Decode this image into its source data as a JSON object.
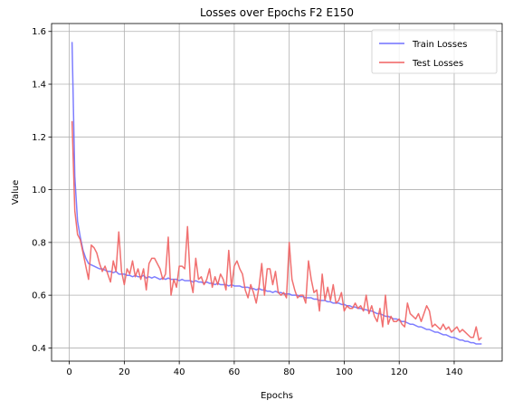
{
  "chart_data": {
    "type": "line",
    "title": "Losses over Epochs F2 E150",
    "xlabel": "Epochs",
    "ylabel": "Value",
    "xlim": [
      -6.45,
      157.45
    ],
    "ylim": [
      0.35,
      1.63
    ],
    "xticks": [
      0,
      20,
      40,
      60,
      80,
      100,
      120,
      140
    ],
    "yticks": [
      0.4,
      0.6,
      0.8,
      1.0,
      1.2,
      1.4,
      1.6
    ],
    "ytick_labels": [
      "0.4",
      "0.6",
      "0.8",
      "1.0",
      "1.2",
      "1.4",
      "1.6"
    ],
    "grid": true,
    "legend_position": "top-right",
    "colors": {
      "train": "#7070ff",
      "test": "#f06060"
    },
    "x": [
      1,
      2,
      3,
      4,
      5,
      6,
      7,
      8,
      9,
      10,
      11,
      12,
      13,
      14,
      15,
      16,
      17,
      18,
      19,
      20,
      21,
      22,
      23,
      24,
      25,
      26,
      27,
      28,
      29,
      30,
      31,
      32,
      33,
      34,
      35,
      36,
      37,
      38,
      39,
      40,
      41,
      42,
      43,
      44,
      45,
      46,
      47,
      48,
      49,
      50,
      51,
      52,
      53,
      54,
      55,
      56,
      57,
      58,
      59,
      60,
      61,
      62,
      63,
      64,
      65,
      66,
      67,
      68,
      69,
      70,
      71,
      72,
      73,
      74,
      75,
      76,
      77,
      78,
      79,
      80,
      81,
      82,
      83,
      84,
      85,
      86,
      87,
      88,
      89,
      90,
      91,
      92,
      93,
      94,
      95,
      96,
      97,
      98,
      99,
      100,
      101,
      102,
      103,
      104,
      105,
      106,
      107,
      108,
      109,
      110,
      111,
      112,
      113,
      114,
      115,
      116,
      117,
      118,
      119,
      120,
      121,
      122,
      123,
      124,
      125,
      126,
      127,
      128,
      129,
      130,
      131,
      132,
      133,
      134,
      135,
      136,
      137,
      138,
      139,
      140,
      141,
      142,
      143,
      144,
      145,
      146,
      147,
      148,
      149,
      150
    ],
    "series": [
      {
        "name": "Train Losses",
        "values": [
          1.56,
          1.05,
          0.88,
          0.82,
          0.77,
          0.74,
          0.72,
          0.715,
          0.71,
          0.705,
          0.7,
          0.7,
          0.695,
          0.69,
          0.69,
          0.685,
          0.69,
          0.68,
          0.68,
          0.68,
          0.675,
          0.675,
          0.67,
          0.675,
          0.67,
          0.67,
          0.675,
          0.665,
          0.67,
          0.665,
          0.67,
          0.665,
          0.66,
          0.665,
          0.66,
          0.665,
          0.66,
          0.66,
          0.66,
          0.655,
          0.66,
          0.655,
          0.655,
          0.655,
          0.65,
          0.655,
          0.65,
          0.65,
          0.645,
          0.65,
          0.645,
          0.645,
          0.64,
          0.645,
          0.64,
          0.64,
          0.64,
          0.635,
          0.64,
          0.635,
          0.635,
          0.635,
          0.63,
          0.63,
          0.63,
          0.625,
          0.625,
          0.62,
          0.625,
          0.62,
          0.62,
          0.615,
          0.615,
          0.61,
          0.615,
          0.61,
          0.61,
          0.605,
          0.605,
          0.605,
          0.6,
          0.6,
          0.6,
          0.595,
          0.595,
          0.59,
          0.59,
          0.59,
          0.585,
          0.585,
          0.58,
          0.58,
          0.58,
          0.575,
          0.575,
          0.57,
          0.57,
          0.57,
          0.565,
          0.565,
          0.56,
          0.56,
          0.555,
          0.555,
          0.55,
          0.55,
          0.545,
          0.545,
          0.54,
          0.54,
          0.535,
          0.53,
          0.53,
          0.525,
          0.52,
          0.52,
          0.515,
          0.51,
          0.51,
          0.505,
          0.5,
          0.5,
          0.495,
          0.49,
          0.49,
          0.485,
          0.48,
          0.48,
          0.475,
          0.47,
          0.47,
          0.465,
          0.46,
          0.46,
          0.455,
          0.45,
          0.45,
          0.445,
          0.44,
          0.44,
          0.435,
          0.43,
          0.43,
          0.425,
          0.425,
          0.42,
          0.42,
          0.415,
          0.415,
          0.415
        ]
      },
      {
        "name": "Test Losses",
        "values": [
          1.26,
          0.92,
          0.83,
          0.81,
          0.76,
          0.71,
          0.66,
          0.79,
          0.78,
          0.76,
          0.72,
          0.69,
          0.71,
          0.68,
          0.65,
          0.73,
          0.69,
          0.84,
          0.69,
          0.64,
          0.7,
          0.68,
          0.73,
          0.67,
          0.7,
          0.66,
          0.7,
          0.62,
          0.72,
          0.74,
          0.74,
          0.72,
          0.7,
          0.66,
          0.68,
          0.82,
          0.6,
          0.66,
          0.63,
          0.71,
          0.71,
          0.7,
          0.86,
          0.66,
          0.61,
          0.74,
          0.66,
          0.67,
          0.64,
          0.66,
          0.7,
          0.63,
          0.67,
          0.64,
          0.68,
          0.66,
          0.62,
          0.77,
          0.63,
          0.71,
          0.73,
          0.7,
          0.68,
          0.62,
          0.59,
          0.64,
          0.61,
          0.57,
          0.63,
          0.72,
          0.6,
          0.7,
          0.7,
          0.64,
          0.69,
          0.61,
          0.6,
          0.61,
          0.59,
          0.8,
          0.66,
          0.62,
          0.59,
          0.6,
          0.6,
          0.57,
          0.73,
          0.66,
          0.61,
          0.62,
          0.54,
          0.68,
          0.58,
          0.63,
          0.58,
          0.64,
          0.57,
          0.58,
          0.61,
          0.54,
          0.56,
          0.55,
          0.55,
          0.57,
          0.55,
          0.56,
          0.54,
          0.6,
          0.53,
          0.56,
          0.52,
          0.5,
          0.55,
          0.48,
          0.6,
          0.49,
          0.52,
          0.5,
          0.5,
          0.51,
          0.49,
          0.48,
          0.57,
          0.53,
          0.52,
          0.51,
          0.53,
          0.5,
          0.53,
          0.56,
          0.54,
          0.48,
          0.49,
          0.48,
          0.47,
          0.49,
          0.47,
          0.48,
          0.46,
          0.47,
          0.48,
          0.46,
          0.47,
          0.46,
          0.45,
          0.44,
          0.44,
          0.48,
          0.43,
          0.44
        ]
      }
    ]
  }
}
